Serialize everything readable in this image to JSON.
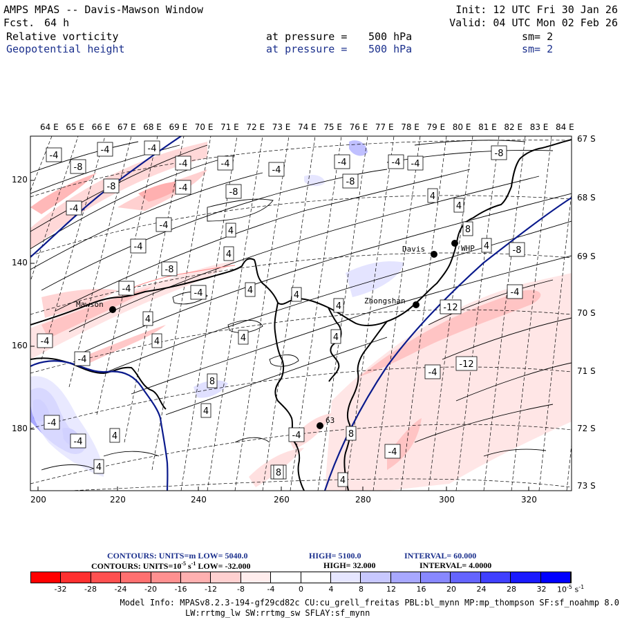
{
  "header": {
    "title": "AMPS MPAS -- Davis-Mawson Window",
    "fcst_label": "Fcst.",
    "fcst_value": "64 h",
    "init": "Init: 12 UTC Fri 30 Jan 26",
    "valid": "Valid: 04 UTC Mon 02 Feb 26",
    "fields": [
      {
        "name": "Relative vorticity",
        "pressure_label": "at pressure =",
        "pressure_value": "500 hPa",
        "smooth": "sm= 2",
        "color": "#000000"
      },
      {
        "name": "Geopotential height",
        "pressure_label": "at pressure =",
        "pressure_value": "500 hPa",
        "smooth": "sm= 2",
        "color": "#1a2f8c"
      }
    ]
  },
  "map": {
    "top_lon_labels": [
      "64 E",
      "65 E",
      "66 E",
      "67 E",
      "68 E",
      "69 E",
      "70 E",
      "71 E",
      "72 E",
      "73 E",
      "74 E",
      "75 E",
      "76 E",
      "77 E",
      "78 E",
      "79 E",
      "80 E",
      "81 E",
      "82 E",
      "83 E",
      "84 E"
    ],
    "right_lat_labels": [
      "67 S",
      "68 S",
      "69 S",
      "70 S",
      "71 S",
      "72 S",
      "73 S"
    ],
    "left_ticks": [
      "120",
      "140",
      "160",
      "180"
    ],
    "bottom_ticks": [
      "200",
      "220",
      "240",
      "260",
      "280",
      "300",
      "320"
    ],
    "stations": [
      {
        "name": "Mawson"
      },
      {
        "name": "Davis"
      },
      {
        "name": "WHP"
      },
      {
        "name": "Zhongshan"
      },
      {
        "name": "63"
      }
    ],
    "vorticity_labels": [
      "-4",
      "-8",
      "-4",
      "-4",
      "-4",
      "-4",
      "-8",
      "-4",
      "-4",
      "-8",
      "-4",
      "-4",
      "-8",
      "-4",
      "-4",
      "-4",
      "-4",
      "-4",
      "-8",
      "-4",
      "-4",
      "-4",
      "-4",
      "-12",
      "-12",
      "-4",
      "-8",
      "-4",
      "-4",
      "-4",
      "-4",
      "-8",
      "-8",
      "4",
      "4",
      "4",
      "4",
      "4",
      "4",
      "4",
      "4",
      "4",
      "4",
      "4",
      "4",
      "4",
      "4",
      "8",
      "8",
      "4",
      "8",
      "4",
      "8"
    ],
    "colors": {
      "height_contour": "#0a1a8c",
      "coast": "#000000"
    }
  },
  "footer": {
    "height_line": {
      "label": "CONTOURS:",
      "units": "UNITS=m",
      "low": "LOW=  5040.0",
      "high": "HIGH=  5100.0",
      "interval": "INTERVAL=   60.000"
    },
    "vort_line": {
      "label": "CONTOURS:",
      "units": "UNITS=10",
      "exp": "-5",
      "units_tail": "s",
      "units_exp": "-1",
      "low": "LOW=  -32.000",
      "high": "HIGH=   32.000",
      "interval": "INTERVAL=    4.0000"
    },
    "colorbar": {
      "colors": [
        "#ff0000",
        "#ff3030",
        "#ff5050",
        "#ff7070",
        "#ff9090",
        "#ffb0b0",
        "#ffd0d0",
        "#ffeded",
        "#ffffff",
        "#ffffff",
        "#e6e6ff",
        "#c8c8ff",
        "#a8a8ff",
        "#8888ff",
        "#6464ff",
        "#4040ff",
        "#1a1aff",
        "#0000ff"
      ],
      "labels": [
        "-32",
        "-28",
        "-24",
        "-20",
        "-16",
        "-12",
        "-8",
        "-4",
        "0",
        "4",
        "8",
        "12",
        "16",
        "20",
        "24",
        "28",
        "32"
      ],
      "units": "10",
      "units_exp": "-5",
      "units_tail": "s",
      "units_tail_exp": "-1"
    },
    "model_info_1": "Model Info: MPASv8.2.3-194-gf29cd82c CU:cu_grell_freitas PBL:bl_mynn MP:mp_thompson SF:sf_noahmp 8.0",
    "model_info_2": "LW:rrtmg_lw SW:rrtmg_sw SFLAY:sf_mynn"
  }
}
